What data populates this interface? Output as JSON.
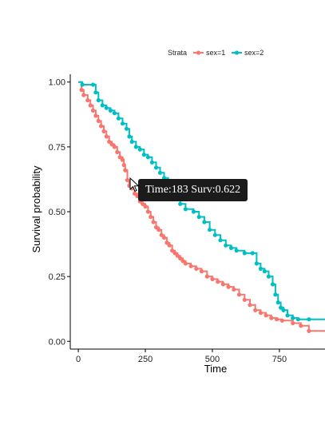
{
  "chart_data": {
    "type": "line",
    "title": "",
    "xlabel": "Time",
    "ylabel": "Survival probability",
    "xlim": [
      -30,
      920
    ],
    "ylim": [
      -0.03,
      1.03
    ],
    "x_ticks": [
      0,
      250,
      500,
      750
    ],
    "y_ticks": [
      0.0,
      0.25,
      0.5,
      0.75,
      1.0
    ],
    "y_tick_labels": [
      "0.00",
      "0.25",
      "0.50",
      "0.75",
      "1.00"
    ],
    "grid": false,
    "legend": {
      "title": "Strata",
      "position": "top",
      "entries": [
        "sex=1",
        "sex=2"
      ]
    },
    "series": [
      {
        "name": "sex=1",
        "color": "#F8766D",
        "points": [
          [
            0,
            1.0
          ],
          [
            12,
            0.97
          ],
          [
            20,
            0.95
          ],
          [
            35,
            0.93
          ],
          [
            45,
            0.91
          ],
          [
            55,
            0.89
          ],
          [
            65,
            0.87
          ],
          [
            75,
            0.85
          ],
          [
            85,
            0.83
          ],
          [
            95,
            0.81
          ],
          [
            105,
            0.79
          ],
          [
            115,
            0.77
          ],
          [
            125,
            0.76
          ],
          [
            135,
            0.75
          ],
          [
            145,
            0.73
          ],
          [
            155,
            0.71
          ],
          [
            165,
            0.7
          ],
          [
            170,
            0.68
          ],
          [
            175,
            0.66
          ],
          [
            183,
            0.622
          ],
          [
            190,
            0.6
          ],
          [
            200,
            0.59
          ],
          [
            210,
            0.57
          ],
          [
            220,
            0.56
          ],
          [
            230,
            0.54
          ],
          [
            240,
            0.53
          ],
          [
            250,
            0.52
          ],
          [
            260,
            0.5
          ],
          [
            270,
            0.48
          ],
          [
            280,
            0.46
          ],
          [
            290,
            0.44
          ],
          [
            300,
            0.43
          ],
          [
            310,
            0.41
          ],
          [
            320,
            0.4
          ],
          [
            330,
            0.38
          ],
          [
            340,
            0.37
          ],
          [
            350,
            0.35
          ],
          [
            360,
            0.34
          ],
          [
            370,
            0.33
          ],
          [
            380,
            0.32
          ],
          [
            390,
            0.31
          ],
          [
            400,
            0.3
          ],
          [
            420,
            0.29
          ],
          [
            440,
            0.28
          ],
          [
            460,
            0.27
          ],
          [
            480,
            0.25
          ],
          [
            500,
            0.24
          ],
          [
            520,
            0.23
          ],
          [
            540,
            0.22
          ],
          [
            560,
            0.21
          ],
          [
            580,
            0.2
          ],
          [
            600,
            0.18
          ],
          [
            620,
            0.16
          ],
          [
            640,
            0.14
          ],
          [
            660,
            0.12
          ],
          [
            680,
            0.11
          ],
          [
            700,
            0.1
          ],
          [
            720,
            0.09
          ],
          [
            740,
            0.085
          ],
          [
            760,
            0.08
          ],
          [
            800,
            0.07
          ],
          [
            830,
            0.06
          ],
          [
            860,
            0.04
          ],
          [
            920,
            0.04
          ]
        ]
      },
      {
        "name": "sex=2",
        "color": "#00BFC4",
        "points": [
          [
            0,
            1.0
          ],
          [
            15,
            0.99
          ],
          [
            55,
            0.99
          ],
          [
            65,
            0.96
          ],
          [
            75,
            0.93
          ],
          [
            90,
            0.91
          ],
          [
            105,
            0.9
          ],
          [
            120,
            0.89
          ],
          [
            135,
            0.88
          ],
          [
            150,
            0.86
          ],
          [
            165,
            0.84
          ],
          [
            180,
            0.82
          ],
          [
            190,
            0.79
          ],
          [
            200,
            0.77
          ],
          [
            215,
            0.75
          ],
          [
            230,
            0.74
          ],
          [
            245,
            0.72
          ],
          [
            260,
            0.71
          ],
          [
            275,
            0.69
          ],
          [
            290,
            0.67
          ],
          [
            305,
            0.65
          ],
          [
            320,
            0.63
          ],
          [
            335,
            0.6
          ],
          [
            350,
            0.58
          ],
          [
            365,
            0.56
          ],
          [
            380,
            0.53
          ],
          [
            400,
            0.51
          ],
          [
            430,
            0.5
          ],
          [
            450,
            0.48
          ],
          [
            470,
            0.46
          ],
          [
            490,
            0.43
          ],
          [
            510,
            0.41
          ],
          [
            530,
            0.39
          ],
          [
            550,
            0.37
          ],
          [
            570,
            0.36
          ],
          [
            590,
            0.35
          ],
          [
            620,
            0.34
          ],
          [
            650,
            0.34
          ],
          [
            665,
            0.3
          ],
          [
            680,
            0.28
          ],
          [
            695,
            0.27
          ],
          [
            710,
            0.25
          ],
          [
            725,
            0.22
          ],
          [
            735,
            0.18
          ],
          [
            745,
            0.15
          ],
          [
            755,
            0.13
          ],
          [
            765,
            0.12
          ],
          [
            780,
            0.1
          ],
          [
            800,
            0.09
          ],
          [
            820,
            0.085
          ],
          [
            860,
            0.085
          ],
          [
            920,
            0.085
          ]
        ]
      }
    ],
    "tooltip": {
      "text": "Time:183 Surv:0.622",
      "x": 183,
      "y": 0.622
    }
  }
}
